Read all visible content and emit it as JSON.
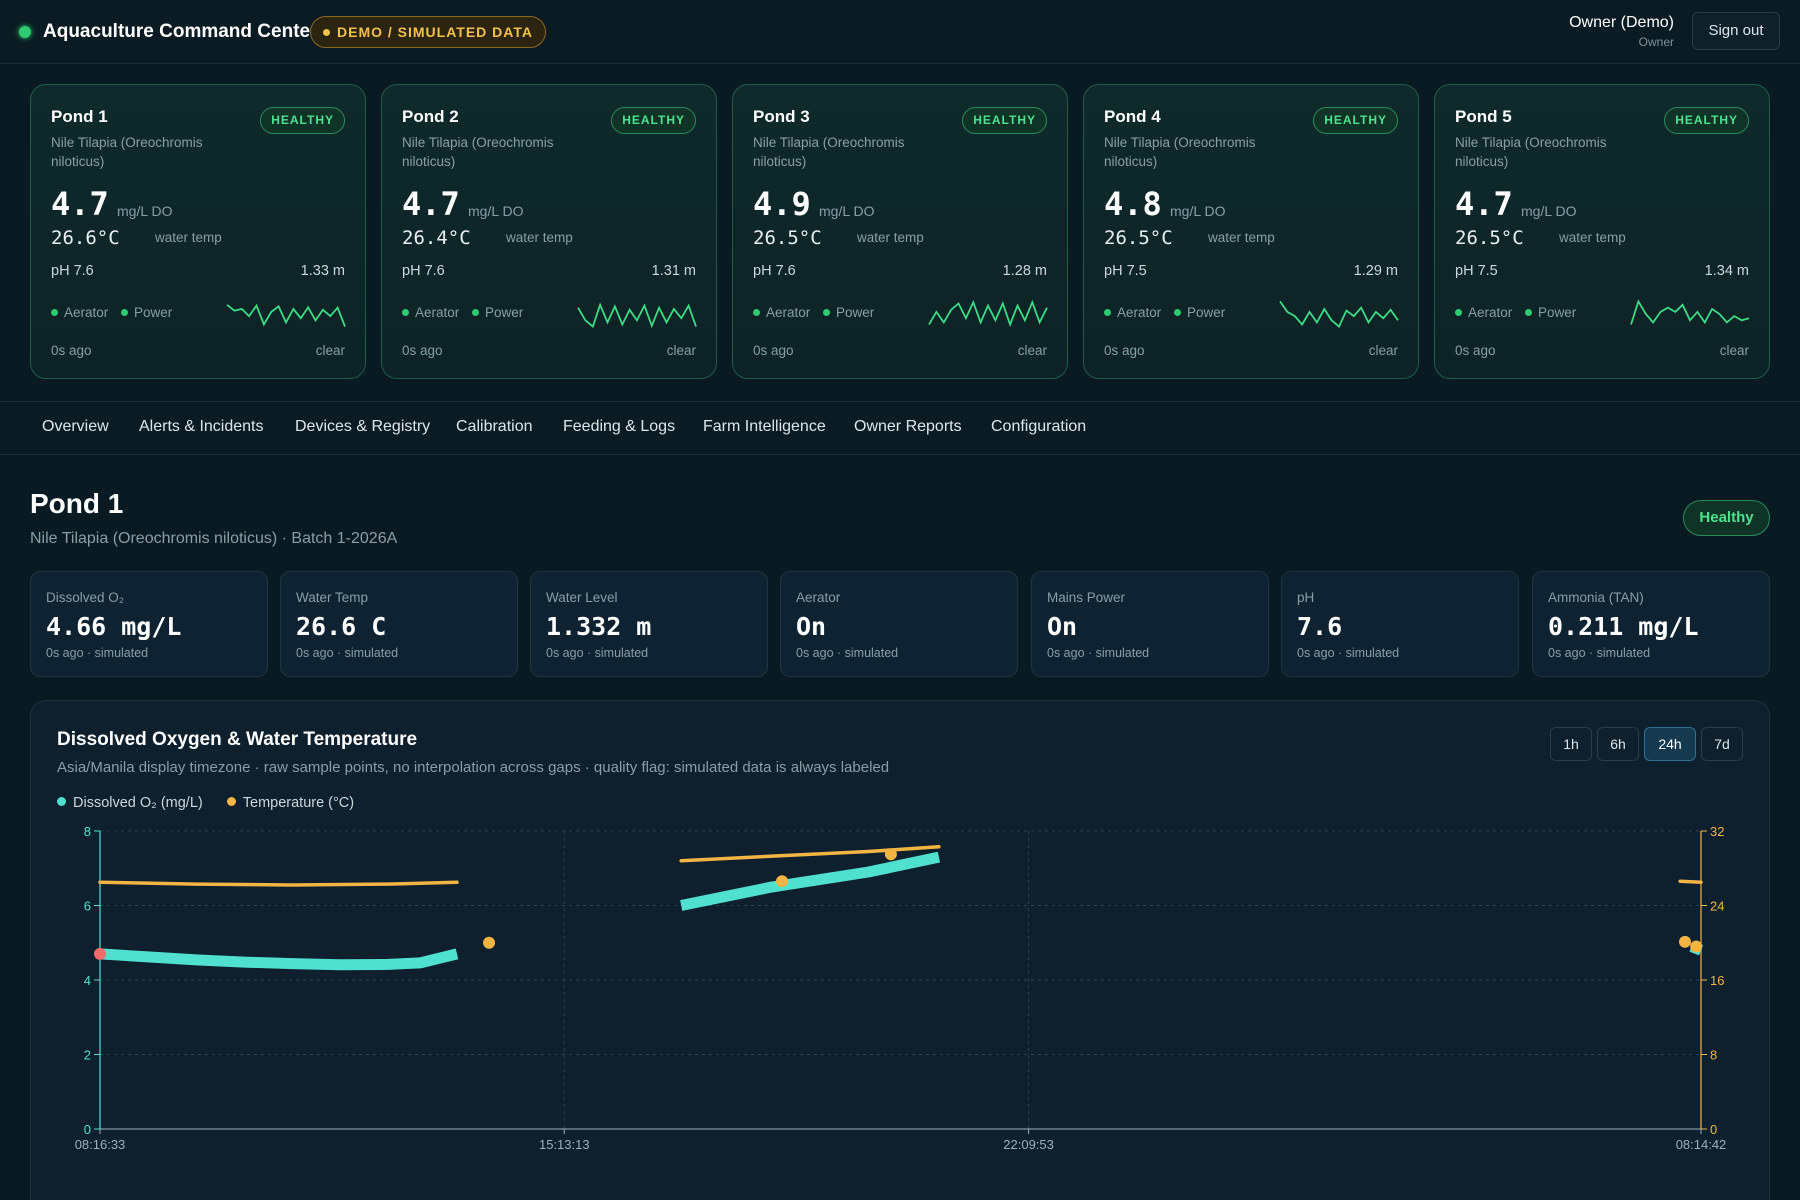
{
  "header": {
    "app_title": "Aquaculture Command Center",
    "demo_badge": "DEMO / SIMULATED DATA",
    "user_name": "Owner (Demo)",
    "user_role": "Owner",
    "signout_label": "Sign out"
  },
  "pond_cards": [
    {
      "name": "Pond 1",
      "status": "HEALTHY",
      "species": "Nile Tilapia (Oreochromis niloticus)",
      "do_value": "4.7",
      "do_unit": "mg/L DO",
      "temp_value": "26.6°C",
      "temp_unit": "water temp",
      "ph": "pH 7.6",
      "level": "1.33 m",
      "aerator": "Aerator",
      "power": "Power",
      "ago": "0s ago",
      "clear": "clear",
      "spark": [
        0.72,
        0.58,
        0.62,
        0.45,
        0.7,
        0.25,
        0.55,
        0.68,
        0.3,
        0.62,
        0.4,
        0.66,
        0.35,
        0.6,
        0.45,
        0.65,
        0.2
      ]
    },
    {
      "name": "Pond 2",
      "status": "HEALTHY",
      "species": "Nile Tilapia (Oreochromis niloticus)",
      "do_value": "4.7",
      "do_unit": "mg/L DO",
      "temp_value": "26.4°C",
      "temp_unit": "water temp",
      "ph": "pH 7.6",
      "level": "1.31 m",
      "aerator": "Aerator",
      "power": "Power",
      "ago": "0s ago",
      "clear": "clear",
      "spark": [
        0.65,
        0.35,
        0.2,
        0.72,
        0.3,
        0.68,
        0.25,
        0.6,
        0.35,
        0.7,
        0.22,
        0.65,
        0.3,
        0.62,
        0.4,
        0.7,
        0.2
      ]
    },
    {
      "name": "Pond 3",
      "status": "HEALTHY",
      "species": "Nile Tilapia (Oreochromis niloticus)",
      "do_value": "4.9",
      "do_unit": "mg/L DO",
      "temp_value": "26.5°C",
      "temp_unit": "water temp",
      "ph": "pH 7.6",
      "level": "1.28 m",
      "aerator": "Aerator",
      "power": "Power",
      "ago": "0s ago",
      "clear": "clear",
      "spark": [
        0.25,
        0.55,
        0.3,
        0.6,
        0.75,
        0.4,
        0.78,
        0.3,
        0.7,
        0.35,
        0.75,
        0.25,
        0.7,
        0.35,
        0.78,
        0.3,
        0.65
      ]
    },
    {
      "name": "Pond 4",
      "status": "HEALTHY",
      "species": "Nile Tilapia (Oreochromis niloticus)",
      "do_value": "4.8",
      "do_unit": "mg/L DO",
      "temp_value": "26.5°C",
      "temp_unit": "water temp",
      "ph": "pH 7.5",
      "level": "1.29 m",
      "aerator": "Aerator",
      "power": "Power",
      "ago": "0s ago",
      "clear": "clear",
      "spark": [
        0.8,
        0.55,
        0.45,
        0.25,
        0.55,
        0.3,
        0.62,
        0.35,
        0.2,
        0.58,
        0.45,
        0.65,
        0.3,
        0.55,
        0.4,
        0.6,
        0.35
      ]
    },
    {
      "name": "Pond 5",
      "status": "HEALTHY",
      "species": "Nile Tilapia (Oreochromis niloticus)",
      "do_value": "4.7",
      "do_unit": "mg/L DO",
      "temp_value": "26.5°C",
      "temp_unit": "water temp",
      "ph": "pH 7.5",
      "level": "1.34 m",
      "aerator": "Aerator",
      "power": "Power",
      "ago": "0s ago",
      "clear": "clear",
      "spark": [
        0.25,
        0.8,
        0.5,
        0.3,
        0.55,
        0.65,
        0.55,
        0.72,
        0.35,
        0.55,
        0.3,
        0.62,
        0.5,
        0.3,
        0.45,
        0.35,
        0.4
      ]
    }
  ],
  "tabs": [
    "Overview",
    "Alerts & Incidents",
    "Devices & Registry",
    "Calibration",
    "Feeding & Logs",
    "Farm Intelligence",
    "Owner Reports",
    "Configuration"
  ],
  "detail": {
    "title": "Pond 1",
    "subtitle": "Nile Tilapia (Oreochromis niloticus) · Batch 1-2026A",
    "status": "Healthy"
  },
  "metrics": [
    {
      "label": "Dissolved O₂",
      "value": "4.66 mg/L",
      "foot": "0s ago · simulated"
    },
    {
      "label": "Water Temp",
      "value": "26.6 C",
      "foot": "0s ago · simulated"
    },
    {
      "label": "Water Level",
      "value": "1.332 m",
      "foot": "0s ago · simulated"
    },
    {
      "label": "Aerator",
      "value": "On",
      "foot": "0s ago · simulated"
    },
    {
      "label": "Mains Power",
      "value": "On",
      "foot": "0s ago · simulated"
    },
    {
      "label": "pH",
      "value": "7.6",
      "foot": "0s ago · simulated"
    },
    {
      "label": "Ammonia (TAN)",
      "value": "0.211 mg/L",
      "foot": "0s ago · simulated"
    }
  ],
  "chart": {
    "title": "Dissolved Oxygen & Water Temperature",
    "subtitle": "Asia/Manila display timezone · raw sample points, no interpolation across gaps · quality flag: simulated data is always labeled",
    "ranges": [
      "1h",
      "6h",
      "24h",
      "7d"
    ],
    "active_range": "24h"
  },
  "colors": {
    "do_series": "#4fe0cf",
    "temp_series": "#f2b544",
    "alert_point": "#f26a6a",
    "healthy": "#4ee28f",
    "accent_grid": "#2b4250"
  },
  "chart_data": {
    "type": "line",
    "title": "Dissolved Oxygen & Water Temperature",
    "x_tick_labels": [
      "08:16:33",
      "15:13:13",
      "22:09:53",
      "08:14:42"
    ],
    "x_tick_positions": [
      0,
      0.29,
      0.58,
      1.0
    ],
    "y_left": {
      "ticks": [
        0,
        2,
        4,
        6,
        8
      ],
      "ylim": [
        0,
        8
      ]
    },
    "y_right": {
      "ticks": [
        0,
        8,
        16,
        24,
        32
      ],
      "ylim": [
        0,
        32
      ]
    },
    "grid": true,
    "legend": "top-left",
    "series": [
      {
        "name": "Dissolved O₂ (mg/L)",
        "axis": "left",
        "segments": [
          [
            [
              0.0,
              4.7
            ],
            [
              0.03,
              4.62
            ],
            [
              0.06,
              4.54
            ],
            [
              0.09,
              4.48
            ],
            [
              0.12,
              4.44
            ],
            [
              0.15,
              4.41
            ],
            [
              0.18,
              4.42
            ],
            [
              0.2,
              4.46
            ],
            [
              0.223,
              4.7
            ]
          ],
          [
            [
              0.363,
              6.0
            ],
            [
              0.42,
              6.5
            ],
            [
              0.48,
              6.9
            ],
            [
              0.524,
              7.3
            ]
          ],
          [
            [
              0.994,
              4.9
            ],
            [
              1.0,
              4.8
            ]
          ]
        ]
      },
      {
        "name": "Temperature (°C)",
        "axis": "right",
        "segments": [
          [
            [
              0.0,
              26.5
            ],
            [
              0.06,
              26.3
            ],
            [
              0.12,
              26.2
            ],
            [
              0.18,
              26.3
            ],
            [
              0.223,
              26.5
            ]
          ],
          [
            [
              0.363,
              28.8
            ],
            [
              0.42,
              29.3
            ],
            [
              0.48,
              29.8
            ],
            [
              0.524,
              30.3
            ]
          ],
          [
            [
              0.987,
              26.6
            ],
            [
              1.0,
              26.5
            ]
          ]
        ],
        "points": [
          [
            0.243,
            20.0
          ],
          [
            0.426,
            26.6
          ],
          [
            0.494,
            29.5
          ],
          [
            0.99,
            20.1
          ],
          [
            0.997,
            19.6
          ]
        ]
      }
    ],
    "alert_points": [
      [
        0.0,
        4.7
      ]
    ]
  }
}
